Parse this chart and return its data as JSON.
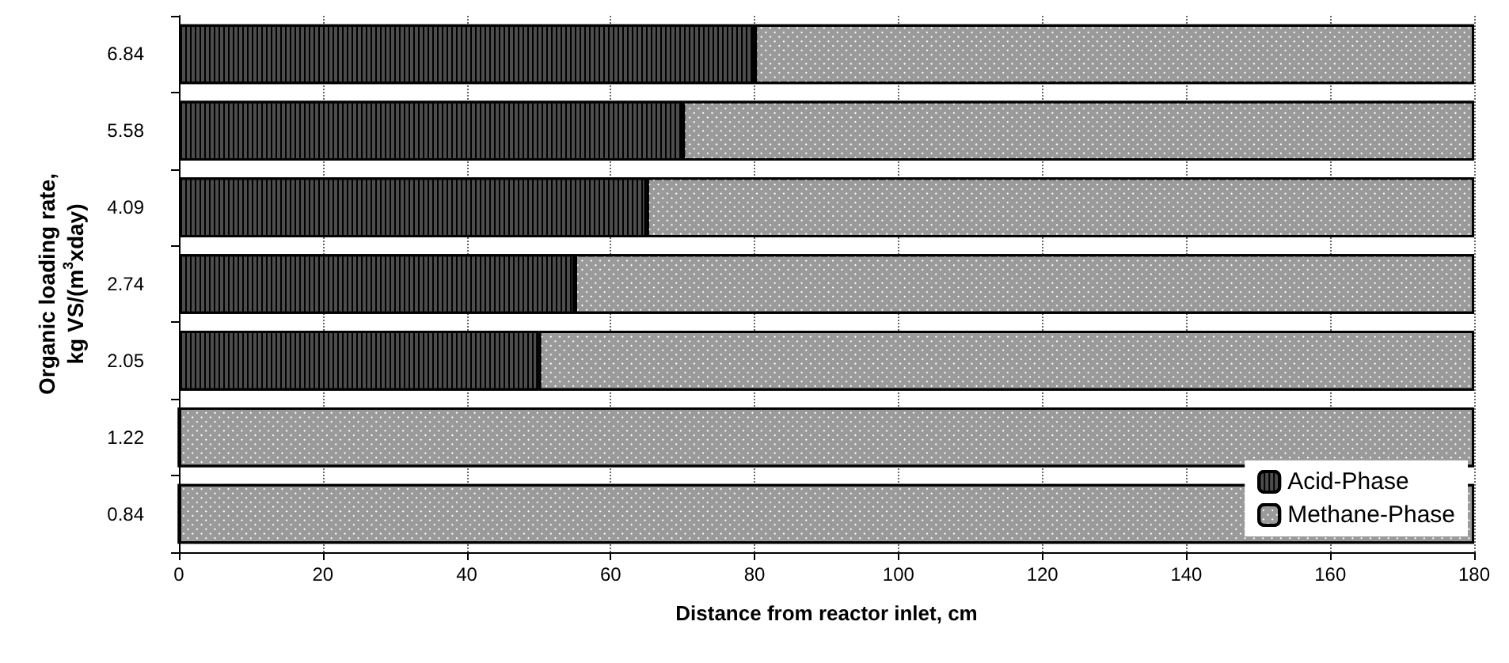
{
  "chart_data": {
    "type": "bar",
    "orientation": "horizontal",
    "stacked": true,
    "xlabel": "Distance from reactor inlet, cm",
    "ylabel": "Organic loading rate,\nkg VS/(m$^{3}$xday)",
    "categories": [
      "6.84",
      "5.58",
      "4.09",
      "2.74",
      "2.05",
      "1.22",
      "0.84"
    ],
    "series": [
      {
        "name": "Acid-Phase",
        "color": "#4d4d4d",
        "values": [
          80,
          70,
          65,
          55,
          50,
          0,
          0
        ]
      },
      {
        "name": "Methane-Phase",
        "color": "#9a9a9a",
        "values": [
          100,
          110,
          115,
          125,
          130,
          180,
          180
        ]
      }
    ],
    "xlim": [
      0,
      180
    ],
    "xticks": [
      0,
      20,
      40,
      60,
      80,
      100,
      120,
      140,
      160,
      180
    ],
    "grid": "x",
    "legend": "bottom right"
  }
}
